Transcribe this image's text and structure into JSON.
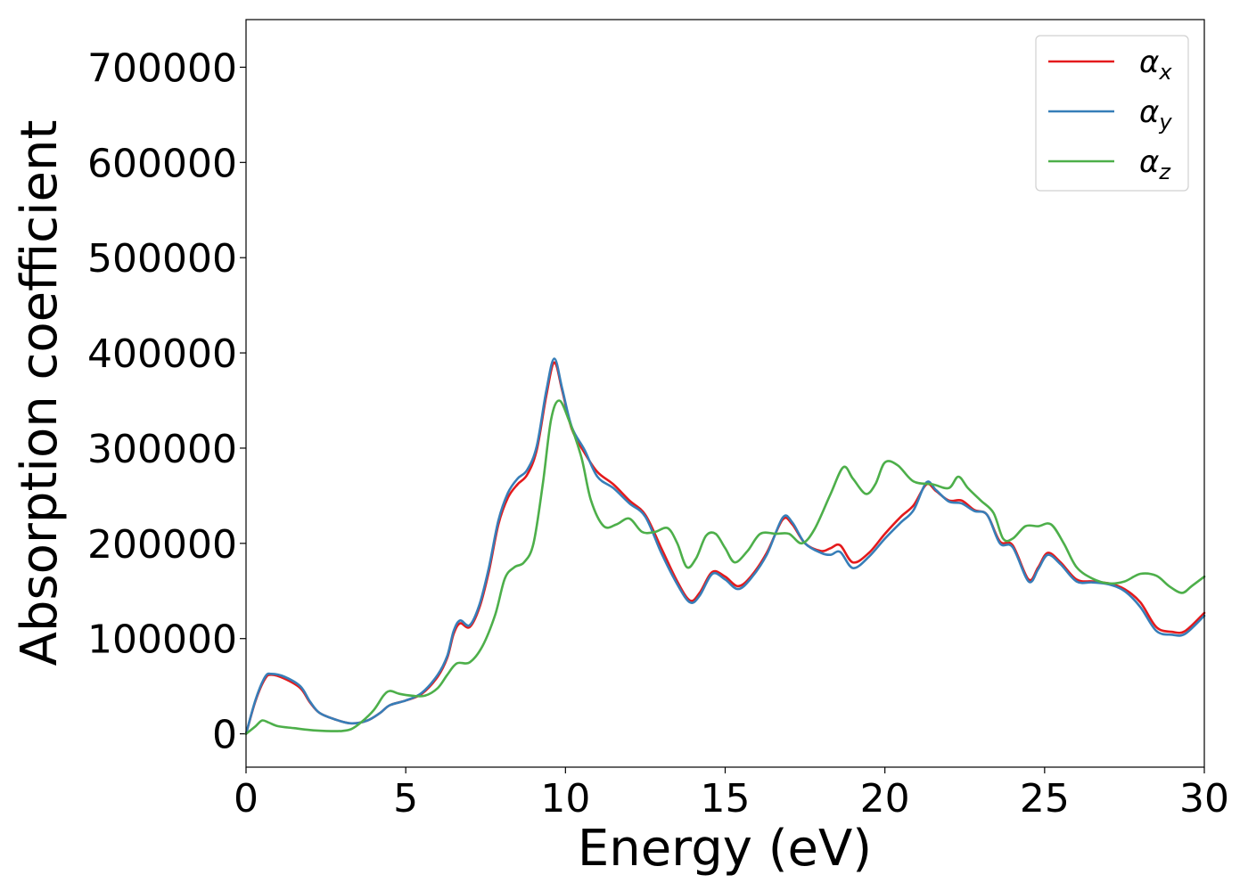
{
  "chart_data": {
    "type": "line",
    "xlabel": "Energy (eV)",
    "ylabel": "Absorption coefficient",
    "xlim": [
      0,
      30
    ],
    "ylim": [
      -35000,
      750000
    ],
    "xticks": [
      "0",
      "5",
      "10",
      "15",
      "20",
      "25",
      "30"
    ],
    "yticks": [
      "0",
      "100000",
      "200000",
      "300000",
      "400000",
      "500000",
      "600000",
      "700000"
    ],
    "grid": false,
    "legend_position": "top-right",
    "series": [
      {
        "name": "αx",
        "symbol": "α",
        "subscript": "x",
        "color": "#e41a1c",
        "points": [
          [
            0,
            0
          ],
          [
            0.3,
            35000
          ],
          [
            0.6,
            58000
          ],
          [
            0.8,
            62000
          ],
          [
            1.2,
            58000
          ],
          [
            1.7,
            48000
          ],
          [
            2.0,
            33000
          ],
          [
            2.3,
            22000
          ],
          [
            2.8,
            15000
          ],
          [
            3.3,
            11000
          ],
          [
            3.8,
            14000
          ],
          [
            4.2,
            22000
          ],
          [
            4.5,
            30000
          ],
          [
            5.0,
            35000
          ],
          [
            5.5,
            42000
          ],
          [
            6.0,
            60000
          ],
          [
            6.3,
            80000
          ],
          [
            6.5,
            105000
          ],
          [
            6.7,
            116000
          ],
          [
            7.0,
            112000
          ],
          [
            7.3,
            132000
          ],
          [
            7.6,
            170000
          ],
          [
            7.9,
            220000
          ],
          [
            8.2,
            248000
          ],
          [
            8.5,
            262000
          ],
          [
            8.8,
            272000
          ],
          [
            9.1,
            298000
          ],
          [
            9.4,
            355000
          ],
          [
            9.65,
            390000
          ],
          [
            9.9,
            360000
          ],
          [
            10.2,
            320000
          ],
          [
            10.6,
            295000
          ],
          [
            11.0,
            275000
          ],
          [
            11.5,
            262000
          ],
          [
            12.0,
            245000
          ],
          [
            12.5,
            230000
          ],
          [
            13.0,
            195000
          ],
          [
            13.5,
            160000
          ],
          [
            13.9,
            140000
          ],
          [
            14.2,
            148000
          ],
          [
            14.6,
            170000
          ],
          [
            15.0,
            165000
          ],
          [
            15.4,
            155000
          ],
          [
            15.8,
            165000
          ],
          [
            16.3,
            190000
          ],
          [
            16.8,
            225000
          ],
          [
            17.1,
            220000
          ],
          [
            17.5,
            200000
          ],
          [
            18.0,
            192000
          ],
          [
            18.3,
            195000
          ],
          [
            18.6,
            198000
          ],
          [
            19.0,
            180000
          ],
          [
            19.5,
            190000
          ],
          [
            20.0,
            210000
          ],
          [
            20.5,
            228000
          ],
          [
            20.9,
            240000
          ],
          [
            21.3,
            262000
          ],
          [
            21.6,
            255000
          ],
          [
            22.0,
            245000
          ],
          [
            22.4,
            245000
          ],
          [
            22.8,
            235000
          ],
          [
            23.2,
            230000
          ],
          [
            23.6,
            202000
          ],
          [
            24.0,
            198000
          ],
          [
            24.5,
            162000
          ],
          [
            24.8,
            175000
          ],
          [
            25.1,
            190000
          ],
          [
            25.5,
            180000
          ],
          [
            26.0,
            162000
          ],
          [
            26.5,
            160000
          ],
          [
            27.0,
            158000
          ],
          [
            27.5,
            152000
          ],
          [
            28.0,
            138000
          ],
          [
            28.5,
            112000
          ],
          [
            29.0,
            107000
          ],
          [
            29.4,
            108000
          ],
          [
            30.0,
            127000
          ]
        ]
      },
      {
        "name": "αy",
        "symbol": "α",
        "subscript": "y",
        "color": "#377eb8",
        "points": [
          [
            0,
            0
          ],
          [
            0.3,
            36000
          ],
          [
            0.6,
            60000
          ],
          [
            0.8,
            63000
          ],
          [
            1.2,
            60000
          ],
          [
            1.7,
            50000
          ],
          [
            2.0,
            34000
          ],
          [
            2.3,
            22000
          ],
          [
            2.8,
            15000
          ],
          [
            3.3,
            11000
          ],
          [
            3.8,
            14000
          ],
          [
            4.2,
            22000
          ],
          [
            4.5,
            30000
          ],
          [
            5.0,
            35000
          ],
          [
            5.5,
            43000
          ],
          [
            6.0,
            62000
          ],
          [
            6.3,
            82000
          ],
          [
            6.5,
            108000
          ],
          [
            6.7,
            119000
          ],
          [
            7.0,
            114000
          ],
          [
            7.3,
            135000
          ],
          [
            7.6,
            174000
          ],
          [
            7.9,
            224000
          ],
          [
            8.2,
            253000
          ],
          [
            8.5,
            268000
          ],
          [
            8.8,
            277000
          ],
          [
            9.1,
            302000
          ],
          [
            9.4,
            360000
          ],
          [
            9.65,
            394000
          ],
          [
            9.9,
            362000
          ],
          [
            10.2,
            322000
          ],
          [
            10.6,
            298000
          ],
          [
            11.0,
            270000
          ],
          [
            11.5,
            258000
          ],
          [
            12.0,
            242000
          ],
          [
            12.5,
            228000
          ],
          [
            13.0,
            190000
          ],
          [
            13.5,
            157000
          ],
          [
            13.9,
            138000
          ],
          [
            14.2,
            145000
          ],
          [
            14.6,
            168000
          ],
          [
            15.0,
            162000
          ],
          [
            15.4,
            152000
          ],
          [
            15.8,
            163000
          ],
          [
            16.3,
            188000
          ],
          [
            16.8,
            227000
          ],
          [
            17.1,
            222000
          ],
          [
            17.5,
            200000
          ],
          [
            18.0,
            190000
          ],
          [
            18.3,
            188000
          ],
          [
            18.6,
            191000
          ],
          [
            19.0,
            174000
          ],
          [
            19.5,
            186000
          ],
          [
            20.0,
            205000
          ],
          [
            20.5,
            222000
          ],
          [
            20.9,
            235000
          ],
          [
            21.3,
            264000
          ],
          [
            21.6,
            256000
          ],
          [
            22.0,
            244000
          ],
          [
            22.4,
            242000
          ],
          [
            22.8,
            234000
          ],
          [
            23.2,
            230000
          ],
          [
            23.6,
            200000
          ],
          [
            24.0,
            196000
          ],
          [
            24.5,
            160000
          ],
          [
            24.8,
            173000
          ],
          [
            25.1,
            188000
          ],
          [
            25.5,
            178000
          ],
          [
            26.0,
            160000
          ],
          [
            26.5,
            159000
          ],
          [
            27.0,
            157000
          ],
          [
            27.5,
            150000
          ],
          [
            28.0,
            133000
          ],
          [
            28.5,
            108000
          ],
          [
            29.0,
            104000
          ],
          [
            29.4,
            105000
          ],
          [
            30.0,
            124000
          ]
        ]
      },
      {
        "name": "αz",
        "symbol": "α",
        "subscript": "z",
        "color": "#4daf4a",
        "points": [
          [
            0,
            0
          ],
          [
            0.3,
            8000
          ],
          [
            0.5,
            14000
          ],
          [
            0.7,
            12000
          ],
          [
            1.0,
            8000
          ],
          [
            1.5,
            6000
          ],
          [
            2.0,
            4000
          ],
          [
            2.5,
            3000
          ],
          [
            3.0,
            3000
          ],
          [
            3.3,
            5000
          ],
          [
            3.6,
            12000
          ],
          [
            4.0,
            25000
          ],
          [
            4.3,
            40000
          ],
          [
            4.5,
            45000
          ],
          [
            4.8,
            42000
          ],
          [
            5.2,
            40000
          ],
          [
            5.6,
            40000
          ],
          [
            6.0,
            48000
          ],
          [
            6.3,
            62000
          ],
          [
            6.6,
            74000
          ],
          [
            7.0,
            75000
          ],
          [
            7.4,
            92000
          ],
          [
            7.8,
            125000
          ],
          [
            8.1,
            163000
          ],
          [
            8.4,
            175000
          ],
          [
            8.7,
            180000
          ],
          [
            9.0,
            200000
          ],
          [
            9.3,
            265000
          ],
          [
            9.55,
            330000
          ],
          [
            9.8,
            350000
          ],
          [
            10.1,
            330000
          ],
          [
            10.5,
            290000
          ],
          [
            10.8,
            245000
          ],
          [
            11.2,
            218000
          ],
          [
            11.6,
            220000
          ],
          [
            12.0,
            226000
          ],
          [
            12.4,
            212000
          ],
          [
            12.8,
            212000
          ],
          [
            13.2,
            216000
          ],
          [
            13.5,
            200000
          ],
          [
            13.8,
            175000
          ],
          [
            14.1,
            185000
          ],
          [
            14.4,
            208000
          ],
          [
            14.7,
            210000
          ],
          [
            15.0,
            195000
          ],
          [
            15.3,
            180000
          ],
          [
            15.7,
            192000
          ],
          [
            16.1,
            210000
          ],
          [
            16.6,
            210000
          ],
          [
            17.0,
            210000
          ],
          [
            17.4,
            200000
          ],
          [
            17.8,
            215000
          ],
          [
            18.3,
            252000
          ],
          [
            18.7,
            280000
          ],
          [
            19.0,
            268000
          ],
          [
            19.4,
            252000
          ],
          [
            19.7,
            262000
          ],
          [
            20.0,
            285000
          ],
          [
            20.4,
            282000
          ],
          [
            20.9,
            265000
          ],
          [
            21.5,
            262000
          ],
          [
            22.0,
            258000
          ],
          [
            22.3,
            270000
          ],
          [
            22.6,
            258000
          ],
          [
            23.0,
            245000
          ],
          [
            23.4,
            232000
          ],
          [
            23.7,
            205000
          ],
          [
            24.0,
            205000
          ],
          [
            24.4,
            218000
          ],
          [
            24.8,
            218000
          ],
          [
            25.2,
            220000
          ],
          [
            25.6,
            200000
          ],
          [
            26.0,
            175000
          ],
          [
            26.5,
            163000
          ],
          [
            27.0,
            158000
          ],
          [
            27.5,
            160000
          ],
          [
            28.0,
            168000
          ],
          [
            28.5,
            166000
          ],
          [
            28.9,
            155000
          ],
          [
            29.3,
            148000
          ],
          [
            29.6,
            155000
          ],
          [
            30.0,
            165000
          ]
        ]
      }
    ]
  }
}
